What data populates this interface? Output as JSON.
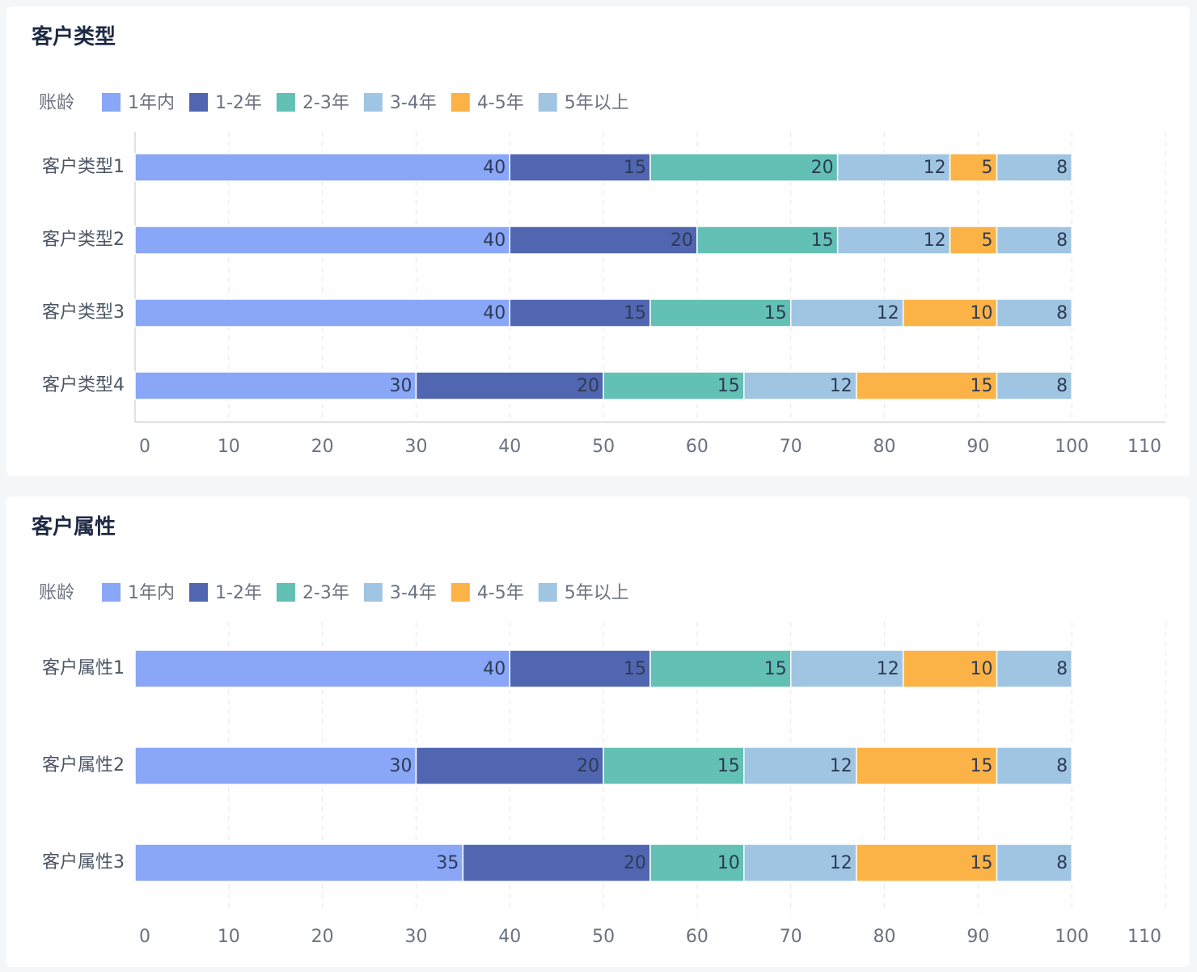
{
  "chart_data": [
    {
      "type": "bar",
      "orientation": "horizontal",
      "stacked": true,
      "title": "客户类型",
      "legend_title": "账龄",
      "legend_position": "top-left",
      "categories": [
        "客户类型1",
        "客户类型2",
        "客户类型3",
        "客户类型4"
      ],
      "series": [
        {
          "name": "1年内",
          "color": "#89a6f7",
          "values": [
            40,
            40,
            40,
            30
          ]
        },
        {
          "name": "1-2年",
          "color": "#5166b0",
          "values": [
            15,
            20,
            15,
            20
          ]
        },
        {
          "name": "2-3年",
          "color": "#62c0b4",
          "values": [
            20,
            15,
            15,
            15
          ]
        },
        {
          "name": "3-4年",
          "color": "#9fc5e2",
          "values": [
            12,
            12,
            12,
            12
          ]
        },
        {
          "name": "4-5年",
          "color": "#fbb247",
          "values": [
            5,
            5,
            10,
            15
          ]
        },
        {
          "name": "5年以上",
          "color": "#9fc5e2",
          "values": [
            8,
            8,
            8,
            8
          ]
        }
      ],
      "x_ticks": [
        "0",
        "10",
        "20",
        "30",
        "40",
        "50",
        "60",
        "70",
        "80",
        "90",
        "100",
        "110"
      ],
      "xlim": [
        0,
        110
      ],
      "grid": true
    },
    {
      "type": "bar",
      "orientation": "horizontal",
      "stacked": true,
      "title": "客户属性",
      "legend_title": "账龄",
      "legend_position": "top-left",
      "categories": [
        "客户属性1",
        "客户属性2",
        "客户属性3"
      ],
      "series": [
        {
          "name": "1年内",
          "color": "#89a6f7",
          "values": [
            40,
            30,
            35
          ]
        },
        {
          "name": "1-2年",
          "color": "#5166b0",
          "values": [
            15,
            20,
            20
          ]
        },
        {
          "name": "2-3年",
          "color": "#62c0b4",
          "values": [
            15,
            15,
            10
          ]
        },
        {
          "name": "3-4年",
          "color": "#9fc5e2",
          "values": [
            12,
            12,
            12
          ]
        },
        {
          "name": "4-5年",
          "color": "#fbb247",
          "values": [
            10,
            15,
            15
          ]
        },
        {
          "name": "5年以上",
          "color": "#9fc5e2",
          "values": [
            8,
            8,
            8
          ]
        }
      ],
      "x_ticks": [
        "0",
        "10",
        "20",
        "30",
        "40",
        "50",
        "60",
        "70",
        "80",
        "90",
        "100",
        "110"
      ],
      "xlim": [
        0,
        110
      ],
      "grid": true
    }
  ]
}
